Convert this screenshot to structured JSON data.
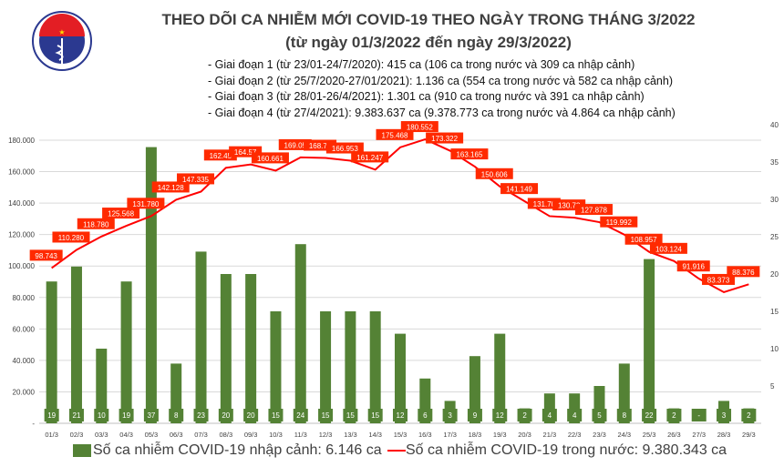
{
  "title": "THEO DÕI CA NHIỄM MỚI COVID-19 THEO NGÀY TRONG THÁNG 3/2022",
  "subtitle": "(từ ngày 01/3/2022 đến ngày 29/3/2022)",
  "logo_text": "BỘ Y TẾ - MINISTRY OF HEALTH",
  "stages": [
    "- Giai đoạn 1 (từ 23/01-24/7/2020): 415 ca (106 ca trong nước và 309 ca nhập cảnh)",
    "- Giai đoạn 2 (từ 25/7/2020-27/01/2021): 1.136 ca (554 ca trong nước và 582 ca nhập cảnh)",
    "- Giai đoạn 3 (từ 28/01-26/4/2021): 1.301 ca (910 ca trong nước và 391 ca nhập cảnh)",
    "- Giai đoạn 4 (từ 27/4/2021): 9.383.637 ca (9.378.773 ca trong nước và 4.864 ca nhập cảnh)"
  ],
  "chart_data": {
    "type": "bar+line",
    "categories": [
      "01/3",
      "02/3",
      "03/3",
      "04/3",
      "05/3",
      "06/3",
      "07/3",
      "08/3",
      "09/3",
      "10/3",
      "11/3",
      "12/3",
      "13/3",
      "14/3",
      "15/3",
      "16/3",
      "17/3",
      "18/3",
      "19/3",
      "20/3",
      "21/3",
      "22/3",
      "23/3",
      "24/3",
      "25/3",
      "26/3",
      "27/3",
      "28/3",
      "29/3"
    ],
    "left_axis": {
      "range": [
        0,
        180000
      ],
      "ticks": [
        "-",
        "20.000",
        "40.000",
        "60.000",
        "80.000",
        "100.000",
        "120.000",
        "140.000",
        "160.000",
        "180.000"
      ]
    },
    "right_axis": {
      "range": [
        0,
        40
      ],
      "ticks": [
        "-",
        "5",
        "10",
        "15",
        "20",
        "25",
        "30",
        "35",
        "40"
      ]
    },
    "grid": true,
    "legend_position": "bottom",
    "series": [
      {
        "name": "Số ca nhiễm COVID-19 nhập cảnh: 6.146 ca",
        "type": "bar",
        "axis": "right",
        "color": "#548235",
        "values": [
          19,
          21,
          10,
          19,
          37,
          8,
          23,
          20,
          20,
          15,
          24,
          15,
          15,
          15,
          12,
          6,
          3,
          9,
          12,
          2,
          4,
          4,
          5,
          8,
          22,
          2,
          0,
          3,
          2
        ],
        "labels": [
          "19",
          "21",
          "10",
          "19",
          "37",
          "8",
          "23",
          "20",
          "20",
          "15",
          "24",
          "15",
          "15",
          "15",
          "12",
          "6",
          "3",
          "9",
          "12",
          "2",
          "4",
          "4",
          "5",
          "8",
          "22",
          "2",
          "-",
          "3",
          "2"
        ]
      },
      {
        "name": "Số ca nhiễm COVID-19 trong nước: 9.380.343 ca",
        "type": "line",
        "axis": "left",
        "color": "#ff0000",
        "values": [
          98743,
          110280,
          118780,
          125568,
          131780,
          142128,
          147335,
          162450,
          164570,
          160661,
          169050,
          168700,
          166953,
          161247,
          175468,
          180552,
          173322,
          163165,
          150606,
          141149,
          131700,
          130730,
          127878,
          119992,
          108957,
          103124,
          91916,
          83373,
          88376
        ],
        "labels": [
          "98.743",
          "110.280",
          "118.780",
          "125.568",
          "131.780",
          "142.128",
          "147.335",
          "162.45",
          "164.57",
          "160.661",
          "169.05",
          "168.70",
          "166.953",
          "161.247",
          "175.468",
          "180.552",
          "173.322",
          "163.165",
          "150.606",
          "141.149",
          "131.70",
          "130.73",
          "127.878",
          "119.992",
          "108.957",
          "103.124",
          "91.916",
          "83.373",
          "88.376"
        ]
      }
    ]
  }
}
